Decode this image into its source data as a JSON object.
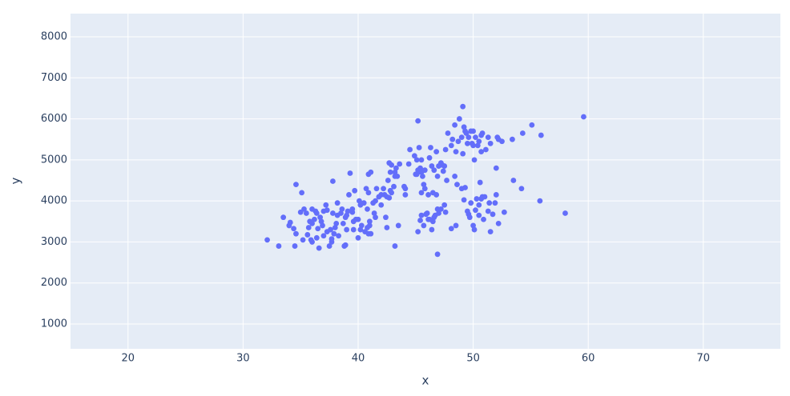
{
  "chart_data": {
    "type": "scatter",
    "xlabel": "x",
    "ylabel": "y",
    "color": "#636efa",
    "grid": true,
    "xlim": [
      15,
      76.7
    ],
    "ylim": [
      396,
      8565
    ],
    "xticks": [
      20,
      30,
      40,
      50,
      60,
      70
    ],
    "yticks": [
      1000,
      2000,
      3000,
      4000,
      5000,
      6000,
      7000,
      8000
    ],
    "x": [
      32.1,
      33.1,
      33.5,
      34.0,
      34.4,
      34.5,
      34.6,
      34.6,
      35.0,
      35.1,
      35.2,
      35.3,
      35.5,
      35.6,
      35.7,
      35.9,
      36.0,
      36.0,
      36.2,
      36.3,
      36.4,
      36.5,
      36.6,
      36.7,
      36.8,
      36.9,
      37.0,
      37.2,
      37.3,
      37.5,
      37.6,
      37.7,
      37.8,
      37.8,
      37.9,
      38.1,
      38.2,
      38.3,
      38.5,
      38.6,
      38.7,
      38.8,
      38.9,
      39.0,
      39.1,
      39.2,
      39.3,
      39.5,
      39.6,
      39.7,
      39.8,
      40.0,
      40.1,
      40.2,
      40.3,
      40.5,
      40.6,
      40.7,
      40.8,
      40.9,
      41.0,
      41.1,
      41.1,
      41.3,
      41.4,
      41.5,
      41.6,
      41.8,
      42.0,
      42.2,
      42.3,
      42.5,
      42.7,
      42.8,
      42.9,
      43.1,
      43.2,
      44.1,
      45.6,
      45.8,
      36.0,
      37.0,
      38.0,
      39.0,
      40.0,
      41.0,
      38.2,
      36.4,
      39.6,
      40.8,
      35.8,
      37.3,
      39.5,
      41.5,
      34.1,
      38.9,
      37.7,
      40.2,
      40.9,
      42.4,
      42.5,
      43.2,
      43.5,
      45.2,
      45.4,
      45.5,
      45.7,
      46.0,
      46.1,
      46.4,
      46.5,
      46.6,
      46.7,
      46.9,
      46.9,
      47.0,
      47.5,
      47.6,
      48.1,
      48.5,
      49.0,
      49.2,
      49.5,
      49.6,
      49.7,
      49.8,
      50.0,
      50.1,
      50.2,
      50.3,
      50.5,
      50.6,
      50.7,
      50.8,
      50.9,
      51.0,
      51.3,
      51.4,
      51.5,
      51.7,
      51.9,
      52.0,
      52.0,
      52.2,
      52.7,
      53.5,
      54.2,
      55.8,
      58.0,
      45.9,
      46.2,
      49.3,
      50.5,
      47.2,
      40.9,
      42.0,
      42.6,
      42.7,
      42.8,
      42.9,
      43.2,
      43.3,
      43.4,
      43.6,
      44.0,
      44.4,
      44.5,
      44.9,
      45.0,
      45.1,
      45.2,
      45.3,
      45.4,
      45.5,
      45.5,
      45.7,
      45.8,
      46.1,
      46.2,
      46.3,
      46.4,
      46.5,
      46.6,
      46.8,
      47.0,
      47.2,
      47.3,
      47.5,
      47.6,
      47.8,
      48.1,
      48.2,
      48.4,
      48.5,
      48.7,
      48.8,
      49.0,
      49.1,
      49.2,
      49.3,
      49.4,
      49.5,
      49.6,
      49.8,
      50.0,
      50.1,
      50.2,
      50.4,
      50.5,
      50.7,
      50.8,
      51.1,
      51.3,
      51.5,
      52.1,
      52.2,
      52.5,
      53.4,
      54.3,
      55.1,
      55.9,
      59.6,
      48.6,
      49.9,
      45.1,
      46.8,
      47.4,
      48.4,
      50.0,
      46.9,
      45.5,
      44.1,
      45.2,
      47.7,
      49.1,
      50.7
    ],
    "y": [
      3050,
      2900,
      3600,
      3400,
      3325,
      2900,
      4400,
      3200,
      3725,
      4200,
      3050,
      3800,
      3700,
      3175,
      3350,
      3050,
      3450,
      3000,
      3550,
      3750,
      3100,
      3325,
      2850,
      3600,
      3500,
      3400,
      3150,
      3900,
      3775,
      2900,
      3300,
      3000,
      3700,
      4480,
      3200,
      3450,
      3950,
      3150,
      3700,
      3800,
      3450,
      2900,
      3600,
      3650,
      3750,
      4150,
      4675,
      3800,
      3500,
      4250,
      3550,
      3100,
      4000,
      3900,
      3400,
      3950,
      3250,
      4300,
      3800,
      4200,
      3400,
      3200,
      4700,
      3950,
      3700,
      4000,
      4300,
      4100,
      3900,
      4300,
      4150,
      4100,
      4075,
      4250,
      4200,
      4350,
      4700,
      4300,
      4600,
      4300,
      3800,
      3750,
      3350,
      3300,
      3550,
      3500,
      3650,
      3700,
      3300,
      3350,
      3500,
      3250,
      3725,
      3600,
      3475,
      2925,
      3075,
      3300,
      3200,
      3600,
      3350,
      2900,
      3400,
      3250,
      3525,
      3650,
      3400,
      3700,
      3550,
      3300,
      3500,
      3600,
      3650,
      2700,
      3800,
      3700,
      3900,
      3725,
      3325,
      3400,
      4300,
      4025,
      3750,
      3675,
      3600,
      3950,
      3400,
      3300,
      3775,
      4050,
      3650,
      4450,
      4050,
      4100,
      3550,
      4100,
      3750,
      3950,
      3250,
      3675,
      3950,
      4800,
      4150,
      3450,
      3725,
      4500,
      4300,
      4000,
      3700,
      3675,
      3550,
      4325,
      3900,
      3800,
      4650,
      4150,
      4500,
      4925,
      4700,
      4875,
      4600,
      4800,
      4600,
      4900,
      4350,
      4900,
      5250,
      5100,
      4650,
      5000,
      5950,
      5300,
      4800,
      4700,
      5000,
      4400,
      4750,
      4150,
      5050,
      5300,
      4850,
      4200,
      4750,
      5200,
      4850,
      4925,
      4875,
      4850,
      5250,
      5650,
      5350,
      5500,
      5850,
      5200,
      5450,
      6000,
      5550,
      6300,
      5800,
      5700,
      5650,
      5400,
      5550,
      5700,
      5700,
      5000,
      5550,
      5350,
      5450,
      5200,
      5650,
      5250,
      5550,
      5400,
      5550,
      5500,
      5450,
      5500,
      5650,
      5850,
      5600,
      6050,
      4400,
      5400,
      4650,
      4150,
      4725,
      4600,
      5350,
      4600,
      4200,
      4150,
      4750,
      4500,
      5150,
      5600
    ]
  }
}
